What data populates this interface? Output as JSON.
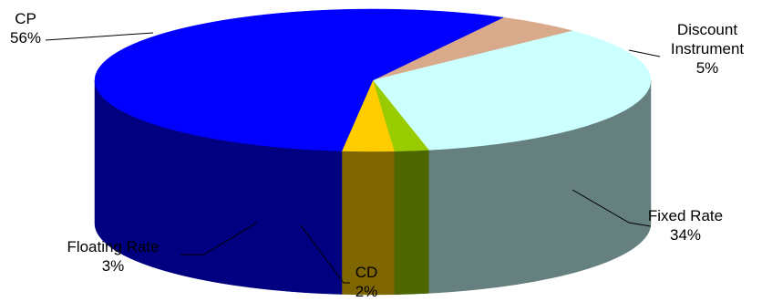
{
  "chart_data": {
    "type": "pie",
    "style": "3d-exploded-none",
    "slices": [
      {
        "label": "Discount Instrument",
        "label_lines": [
          "Discount",
          "Instrument"
        ],
        "value": 5,
        "value_label": "5%",
        "color": "#D9A98C",
        "side_color": "#8C6A4F"
      },
      {
        "label": "Fixed Rate",
        "label_lines": [
          "Fixed Rate"
        ],
        "value": 34,
        "value_label": "34%",
        "color": "#CCFFFF",
        "side_color": "#668080"
      },
      {
        "label": "CD",
        "label_lines": [
          "CD"
        ],
        "value": 2,
        "value_label": "2%",
        "color": "#99CC00",
        "side_color": "#4D6600"
      },
      {
        "label": "Floating Rate",
        "label_lines": [
          "Floating Rate"
        ],
        "value": 3,
        "value_label": "3%",
        "color": "#FFCC00",
        "side_color": "#806600"
      },
      {
        "label": "CP",
        "label_lines": [
          "CP"
        ],
        "value": 56,
        "value_label": "56%",
        "color": "#0000FF",
        "side_color": "#000080"
      }
    ],
    "legend": "none",
    "data_labels": "category-and-percent"
  }
}
